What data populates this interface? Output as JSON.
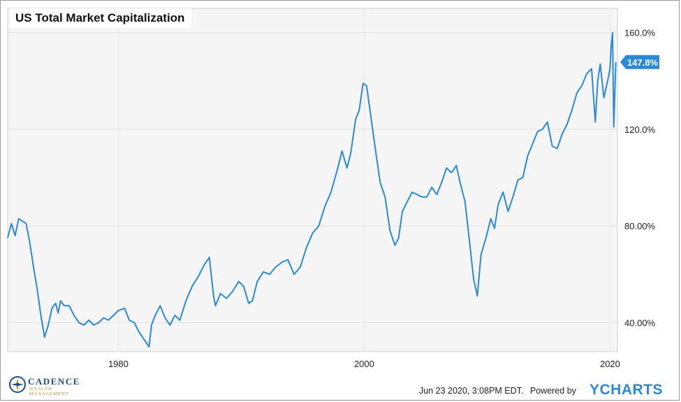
{
  "colors": {
    "line": "#2b89d8",
    "plot_bg": "#f5f5f5",
    "grid": "#e2e2e2",
    "flag": "#2b89d8"
  },
  "footer": {
    "timestamp": "Jun 23 2020, 3:08PM EDT.",
    "powered": "Powered by",
    "brand": "YCHARTS"
  },
  "logo": {
    "name": "CADENCE",
    "sub": "WEALTH MANAGEMENT"
  },
  "chart_data": {
    "type": "line",
    "title": "US Total Market Capitalization",
    "xlim": [
      1971,
      2020.6
    ],
    "ylim": [
      28,
      170
    ],
    "x_ticks": [
      1980,
      2000,
      2020
    ],
    "x_tick_labels": [
      "1980",
      "2000",
      "2020"
    ],
    "y_ticks": [
      40,
      80,
      120,
      160
    ],
    "y_tick_labels": [
      "40.00%",
      "80.00%",
      "120.0%",
      "160.0%"
    ],
    "grid": true,
    "axis_side": "right",
    "last_value_label": "147.8%",
    "last_value": 147.8,
    "series": [
      {
        "x": [
          1971.0,
          1971.3,
          1971.6,
          1971.9,
          1972.2,
          1972.5,
          1972.8,
          1973.1,
          1973.4,
          1973.7,
          1974.0,
          1974.3,
          1974.6,
          1974.9,
          1975.1,
          1975.3,
          1975.6,
          1976.0,
          1976.4,
          1976.8,
          1977.2,
          1977.6,
          1978.0,
          1978.4,
          1978.8,
          1979.2,
          1979.6,
          1980.0,
          1980.5,
          1980.9,
          1981.3,
          1981.7,
          1982.1,
          1982.5,
          1982.7,
          1983.0,
          1983.4,
          1983.8,
          1984.2,
          1984.6,
          1985.0,
          1985.5,
          1986.0,
          1986.5,
          1987.0,
          1987.4,
          1987.75,
          1987.9,
          1988.3,
          1988.8,
          1989.3,
          1989.8,
          1990.2,
          1990.6,
          1990.9,
          1991.3,
          1991.8,
          1992.3,
          1992.8,
          1993.3,
          1993.8,
          1994.3,
          1994.8,
          1995.3,
          1995.8,
          1996.3,
          1996.8,
          1997.3,
          1997.8,
          1998.2,
          1998.6,
          1998.9,
          1999.3,
          1999.6,
          1999.9,
          2000.2,
          2000.6,
          2000.9,
          2001.3,
          2001.7,
          2002.1,
          2002.5,
          2002.8,
          2003.1,
          2003.5,
          2003.9,
          2004.3,
          2004.7,
          2005.1,
          2005.5,
          2005.9,
          2006.3,
          2006.7,
          2007.1,
          2007.5,
          2007.8,
          2008.2,
          2008.6,
          2008.9,
          2009.2,
          2009.5,
          2009.9,
          2010.3,
          2010.6,
          2010.9,
          2011.3,
          2011.7,
          2012.1,
          2012.5,
          2012.9,
          2013.3,
          2013.7,
          2014.1,
          2014.5,
          2014.9,
          2015.3,
          2015.7,
          2016.1,
          2016.5,
          2016.9,
          2017.3,
          2017.7,
          2018.1,
          2018.5,
          2018.8,
          2019.0,
          2019.2,
          2019.5,
          2019.8,
          2020.0,
          2020.1,
          2020.2,
          2020.3,
          2020.47
        ],
        "values": [
          75,
          81,
          76,
          83,
          82,
          81,
          73,
          63,
          54,
          43,
          34,
          39,
          46,
          48,
          44,
          49,
          47,
          47,
          43,
          40,
          39,
          41,
          39,
          40,
          42,
          41,
          43,
          45,
          46,
          41,
          40,
          36,
          33,
          30,
          39,
          43,
          47,
          42,
          39,
          43,
          41,
          49,
          55,
          59,
          64,
          67,
          51,
          47,
          52,
          50,
          53,
          57,
          55,
          48,
          49,
          57,
          61,
          60,
          63,
          65,
          66,
          60,
          63,
          71,
          77,
          80,
          88,
          94,
          103,
          111,
          104,
          110,
          124,
          128,
          139,
          138,
          123,
          112,
          98,
          92,
          78,
          72,
          75,
          86,
          90,
          94,
          93,
          92,
          92,
          96,
          93,
          98,
          104,
          102,
          105,
          98,
          90,
          72,
          58,
          51,
          68,
          75,
          83,
          79,
          89,
          94,
          86,
          92,
          99,
          100,
          109,
          114,
          119,
          120,
          123,
          113,
          112,
          118,
          122,
          128,
          135,
          138,
          143,
          145,
          123,
          140,
          147,
          133,
          140,
          145,
          155,
          160,
          121,
          147.8
        ]
      }
    ]
  }
}
